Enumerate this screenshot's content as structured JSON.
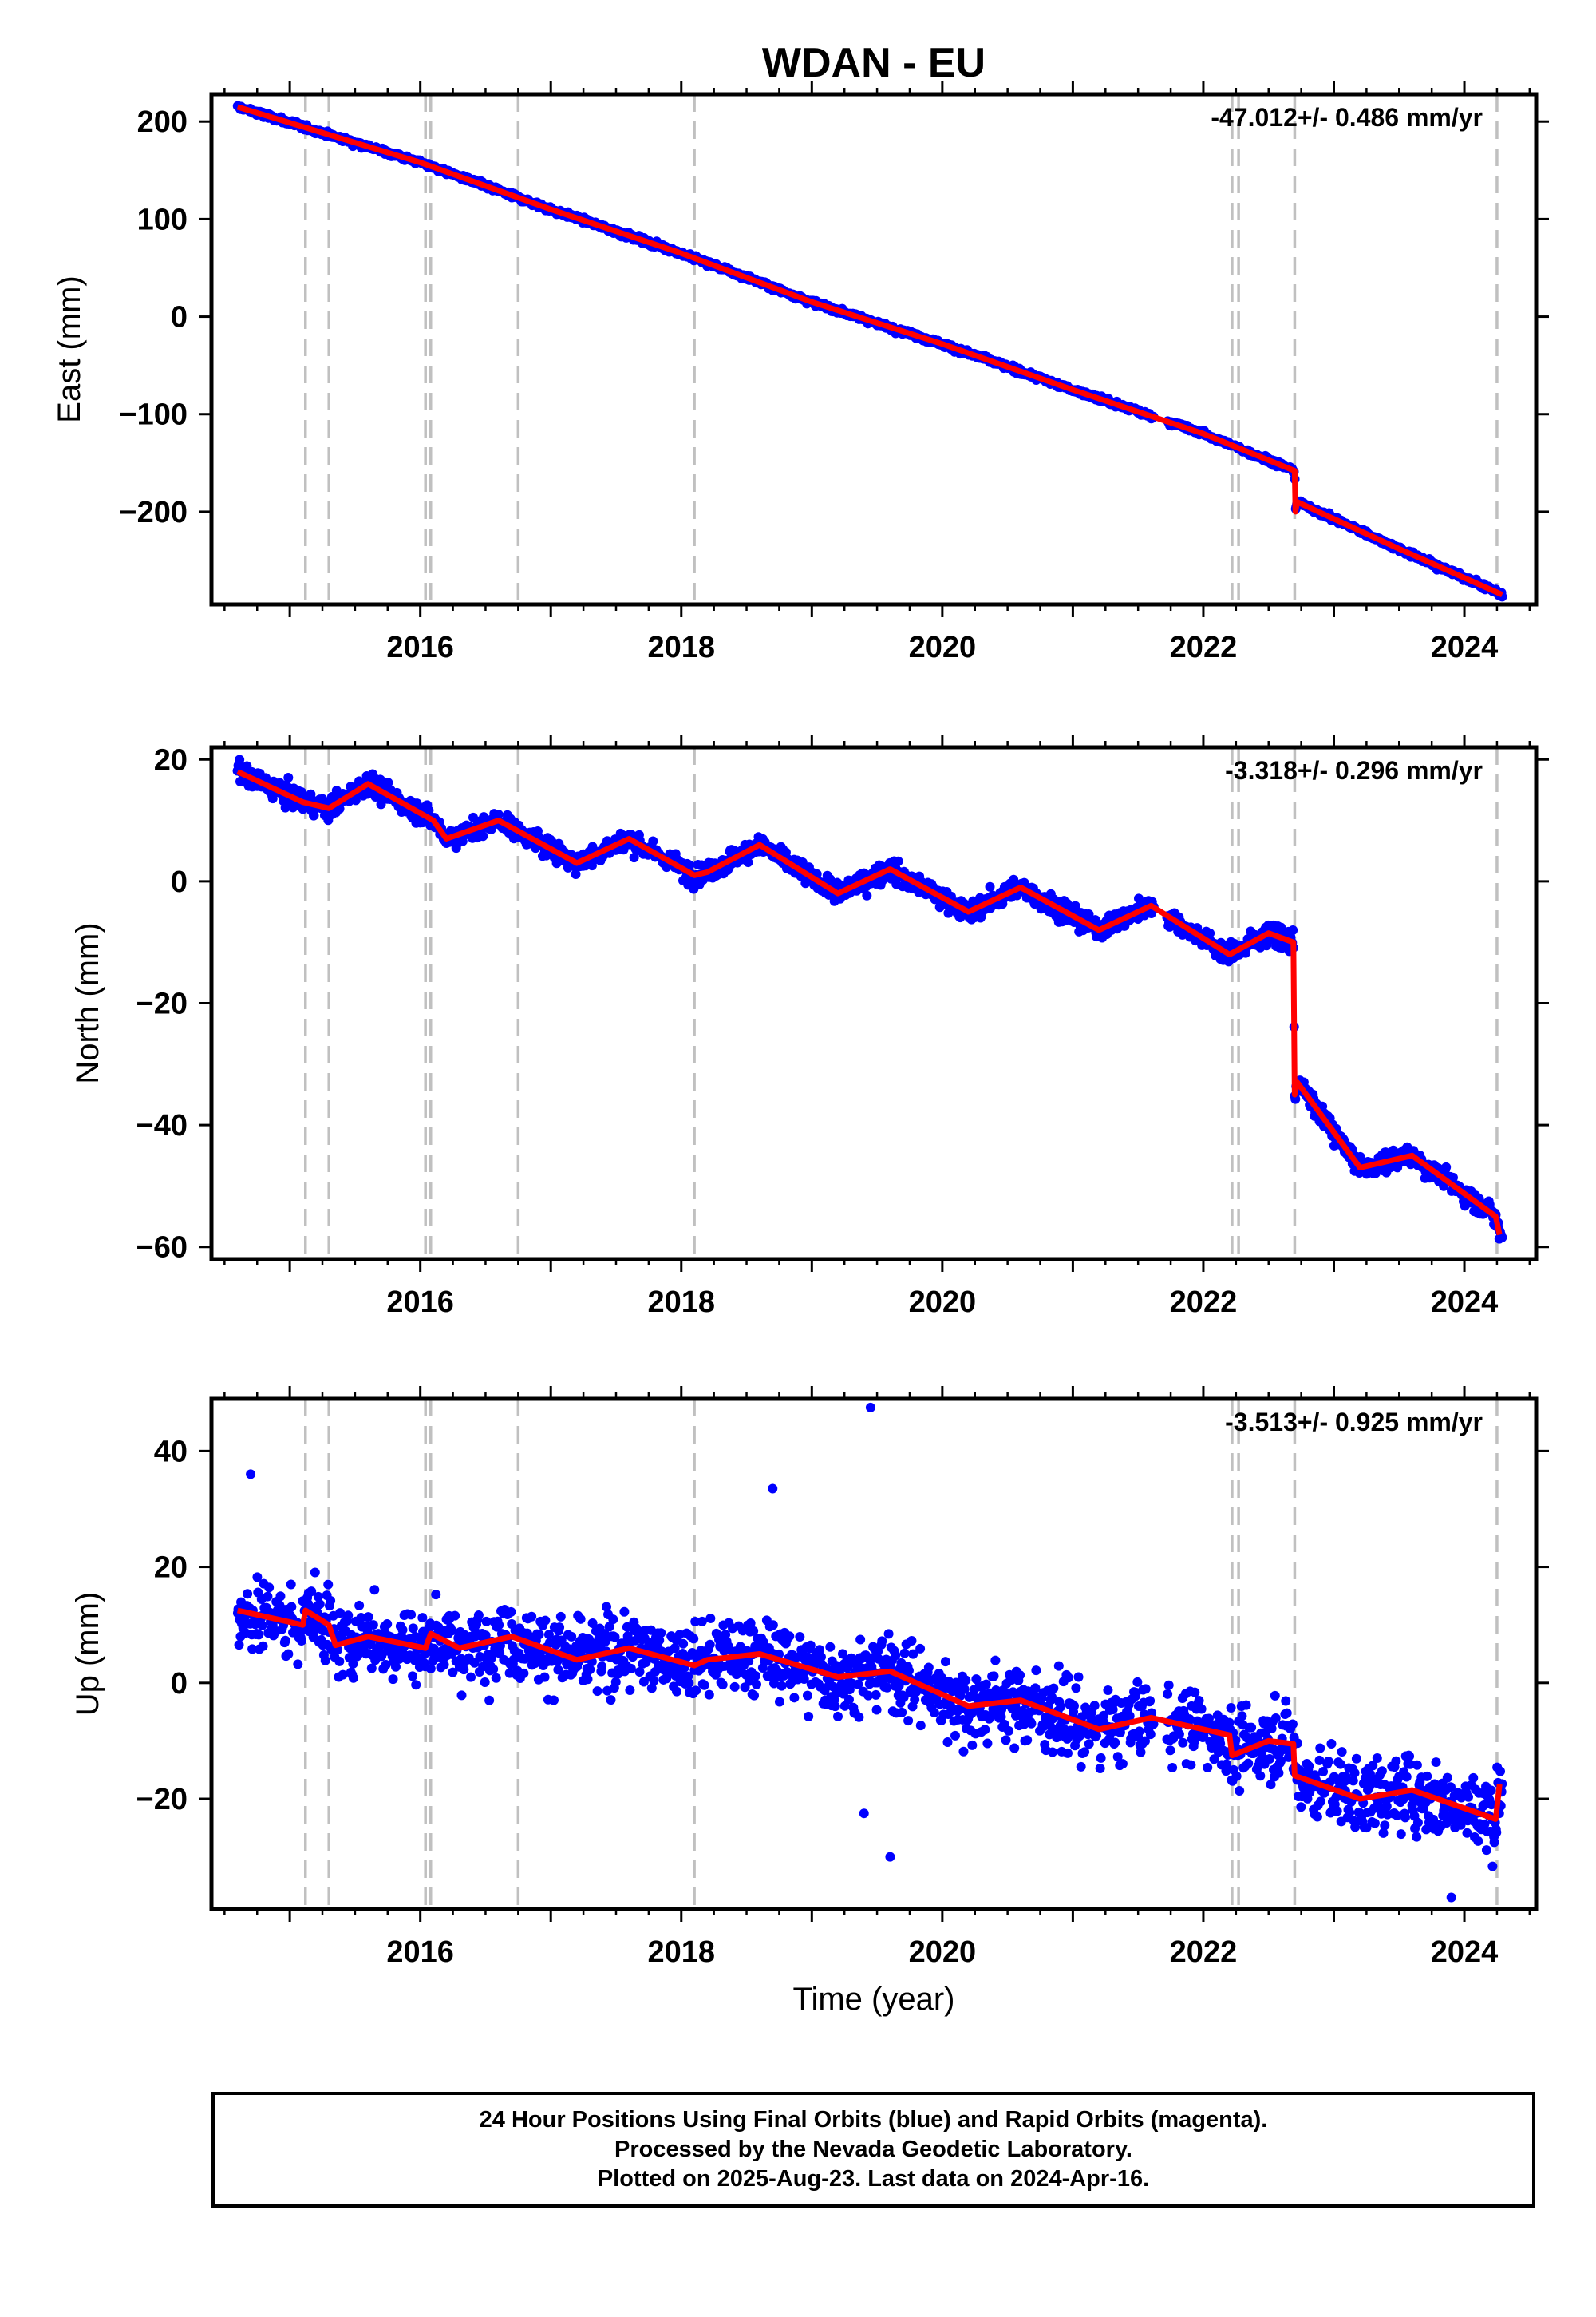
{
  "title": "WDAN - EU",
  "colors": {
    "data": "#0000ff",
    "model": "#ff0000",
    "steps": "#c0c0c0",
    "frame": "#000000"
  },
  "footer": {
    "line1": "24 Hour Positions Using Final Orbits (blue) and Rapid Orbits (magenta).",
    "line2": "Processed by the Nevada Geodetic Laboratory.",
    "line3": "Plotted on 2025-Aug-23. Last data on 2024-Apr-16."
  },
  "chart_data": [
    {
      "type": "scatter",
      "ylabel": "East (mm)",
      "xlabel": "",
      "rate_label": "-47.012+/- 0.486 mm/yr",
      "xlim": [
        2014.4,
        2024.55
      ],
      "ylim": [
        -295,
        228
      ],
      "xticks": [
        2016,
        2018,
        2020,
        2022,
        2024
      ],
      "yticks": [
        200,
        100,
        0,
        -100,
        -200
      ],
      "ytick_labels": [
        "200",
        "100",
        "0",
        "−100",
        "−200"
      ],
      "step_epochs": [
        2015.12,
        2015.3,
        2016.04,
        2016.08,
        2016.75,
        2018.1,
        2022.22,
        2022.27,
        2022.7,
        2024.25
      ],
      "x_range": [
        2014.6,
        2024.29
      ],
      "scatter": 2.5,
      "outliers": [],
      "model": [
        [
          2014.6,
          215
        ],
        [
          2016.0,
          158
        ],
        [
          2017.0,
          110
        ],
        [
          2018.0,
          65
        ],
        [
          2019.0,
          15
        ],
        [
          2020.0,
          -28
        ],
        [
          2021.0,
          -75
        ],
        [
          2022.0,
          -120
        ],
        [
          2022.7,
          -158
        ],
        [
          2022.705,
          -200
        ],
        [
          2022.72,
          -190
        ],
        [
          2023.5,
          -238
        ],
        [
          2024.29,
          -285
        ]
      ]
    },
    {
      "type": "scatter",
      "ylabel": "North (mm)",
      "xlabel": "",
      "rate_label": "-3.318+/- 0.296 mm/yr",
      "xlim": [
        2014.4,
        2024.55
      ],
      "ylim": [
        -62,
        22
      ],
      "xticks": [
        2016,
        2018,
        2020,
        2022,
        2024
      ],
      "yticks": [
        20,
        0,
        -20,
        -40,
        -60
      ],
      "ytick_labels": [
        "20",
        "0",
        "−20",
        "−40",
        "−60"
      ],
      "step_epochs": [
        2015.12,
        2015.3,
        2016.04,
        2016.08,
        2016.75,
        2018.1,
        2022.22,
        2022.27,
        2022.7,
        2024.25
      ],
      "x_range": [
        2014.6,
        2024.29
      ],
      "scatter": 1.5,
      "outliers": [],
      "model": [
        [
          2014.6,
          18
        ],
        [
          2015.1,
          13
        ],
        [
          2015.3,
          12
        ],
        [
          2015.6,
          16
        ],
        [
          2016.1,
          10
        ],
        [
          2016.2,
          7
        ],
        [
          2016.6,
          10
        ],
        [
          2017.2,
          3
        ],
        [
          2017.6,
          7
        ],
        [
          2018.1,
          1
        ],
        [
          2018.2,
          1.5
        ],
        [
          2018.6,
          6
        ],
        [
          2019.2,
          -2
        ],
        [
          2019.6,
          2
        ],
        [
          2020.2,
          -5
        ],
        [
          2020.6,
          -1
        ],
        [
          2021.2,
          -8
        ],
        [
          2021.6,
          -4
        ],
        [
          2022.2,
          -12
        ],
        [
          2022.5,
          -8.5
        ],
        [
          2022.69,
          -10
        ],
        [
          2022.7,
          -35
        ],
        [
          2022.72,
          -33
        ],
        [
          2023.2,
          -47
        ],
        [
          2023.6,
          -45
        ],
        [
          2024.24,
          -55
        ],
        [
          2024.27,
          -58
        ]
      ]
    },
    {
      "type": "scatter",
      "ylabel": "Up (mm)",
      "xlabel": "Time (year)",
      "rate_label": "-3.513+/- 0.925 mm/yr",
      "xlim": [
        2014.4,
        2024.55
      ],
      "ylim": [
        -39,
        49
      ],
      "xticks": [
        2016,
        2018,
        2020,
        2022,
        2024
      ],
      "yticks": [
        40,
        20,
        0,
        -20
      ],
      "ytick_labels": [
        "40",
        "20",
        "0",
        "−20"
      ],
      "step_epochs": [
        2015.12,
        2015.3,
        2016.04,
        2016.08,
        2016.75,
        2018.1,
        2022.22,
        2022.27,
        2022.7,
        2024.25
      ],
      "x_range": [
        2014.6,
        2024.29
      ],
      "scatter": 5,
      "outliers": [
        [
          2019.45,
          47.5
        ],
        [
          2018.7,
          33.5
        ],
        [
          2014.7,
          36
        ],
        [
          2019.6,
          -30
        ],
        [
          2019.4,
          -22.5
        ],
        [
          2023.9,
          -37
        ]
      ],
      "model": [
        [
          2014.6,
          12.5
        ],
        [
          2015.1,
          10
        ],
        [
          2015.12,
          12.5
        ],
        [
          2015.3,
          10
        ],
        [
          2015.35,
          6.5
        ],
        [
          2015.6,
          8
        ],
        [
          2016.04,
          6
        ],
        [
          2016.08,
          8.5
        ],
        [
          2016.3,
          6
        ],
        [
          2016.7,
          8
        ],
        [
          2017.2,
          4
        ],
        [
          2017.6,
          6
        ],
        [
          2018.1,
          3
        ],
        [
          2018.2,
          4
        ],
        [
          2018.6,
          5
        ],
        [
          2019.2,
          1
        ],
        [
          2019.6,
          2
        ],
        [
          2020.2,
          -4
        ],
        [
          2020.6,
          -3
        ],
        [
          2021.2,
          -8
        ],
        [
          2021.6,
          -6
        ],
        [
          2022.2,
          -9
        ],
        [
          2022.22,
          -12.5
        ],
        [
          2022.5,
          -10
        ],
        [
          2022.69,
          -10.5
        ],
        [
          2022.7,
          -16
        ],
        [
          2023.2,
          -20
        ],
        [
          2023.6,
          -18.5
        ],
        [
          2024.24,
          -23.5
        ],
        [
          2024.27,
          -17.5
        ]
      ]
    }
  ]
}
